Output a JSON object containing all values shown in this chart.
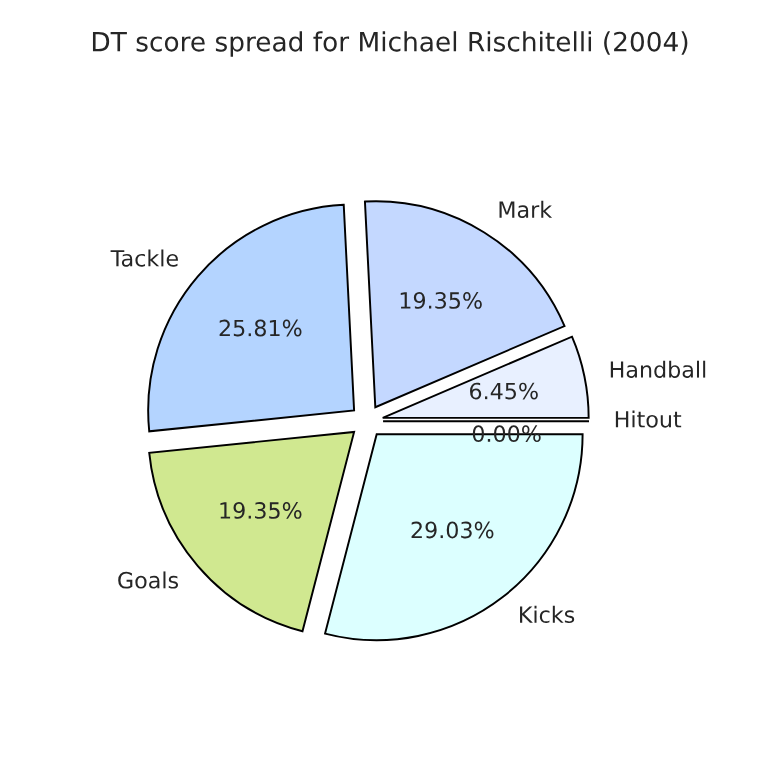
{
  "chart_data": {
    "type": "pie",
    "title": "DT score spread for Michael Rischitelli (2004)",
    "categories": [
      "Hitout",
      "Handball",
      "Mark",
      "Tackle",
      "Goals",
      "Kicks"
    ],
    "values": [
      0.0,
      6.45,
      19.35,
      25.81,
      19.35,
      29.03
    ],
    "colors": [
      "#f4f8ff",
      "#e8f0ff",
      "#c4d8ff",
      "#b4d4ff",
      "#d0e890",
      "#dcffff"
    ],
    "value_labels": [
      "0.00%",
      "6.45%",
      "19.35%",
      "25.81%",
      "19.35%",
      "29.03%"
    ]
  }
}
